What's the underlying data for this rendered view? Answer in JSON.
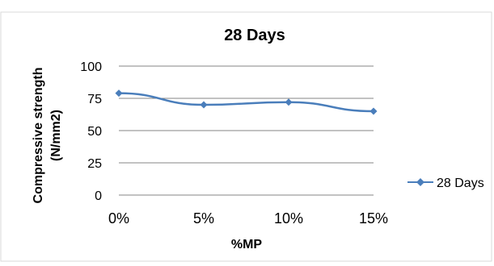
{
  "chart_data": {
    "type": "line",
    "title": "28 Days",
    "xlabel": "%MP",
    "ylabel": "Compressive strength (N/mm2)",
    "ylabel_lines": [
      "Compressive strength",
      "(N/mm2)"
    ],
    "categories": [
      "0%",
      "5%",
      "10%",
      "15%"
    ],
    "series": [
      {
        "name": "28 Days",
        "color": "#4a7ebb",
        "values": [
          79,
          70,
          72,
          65
        ]
      }
    ],
    "ylim": [
      0,
      100
    ],
    "yticks": [
      0,
      25,
      50,
      75,
      100
    ],
    "grid": true,
    "legend": "right"
  }
}
